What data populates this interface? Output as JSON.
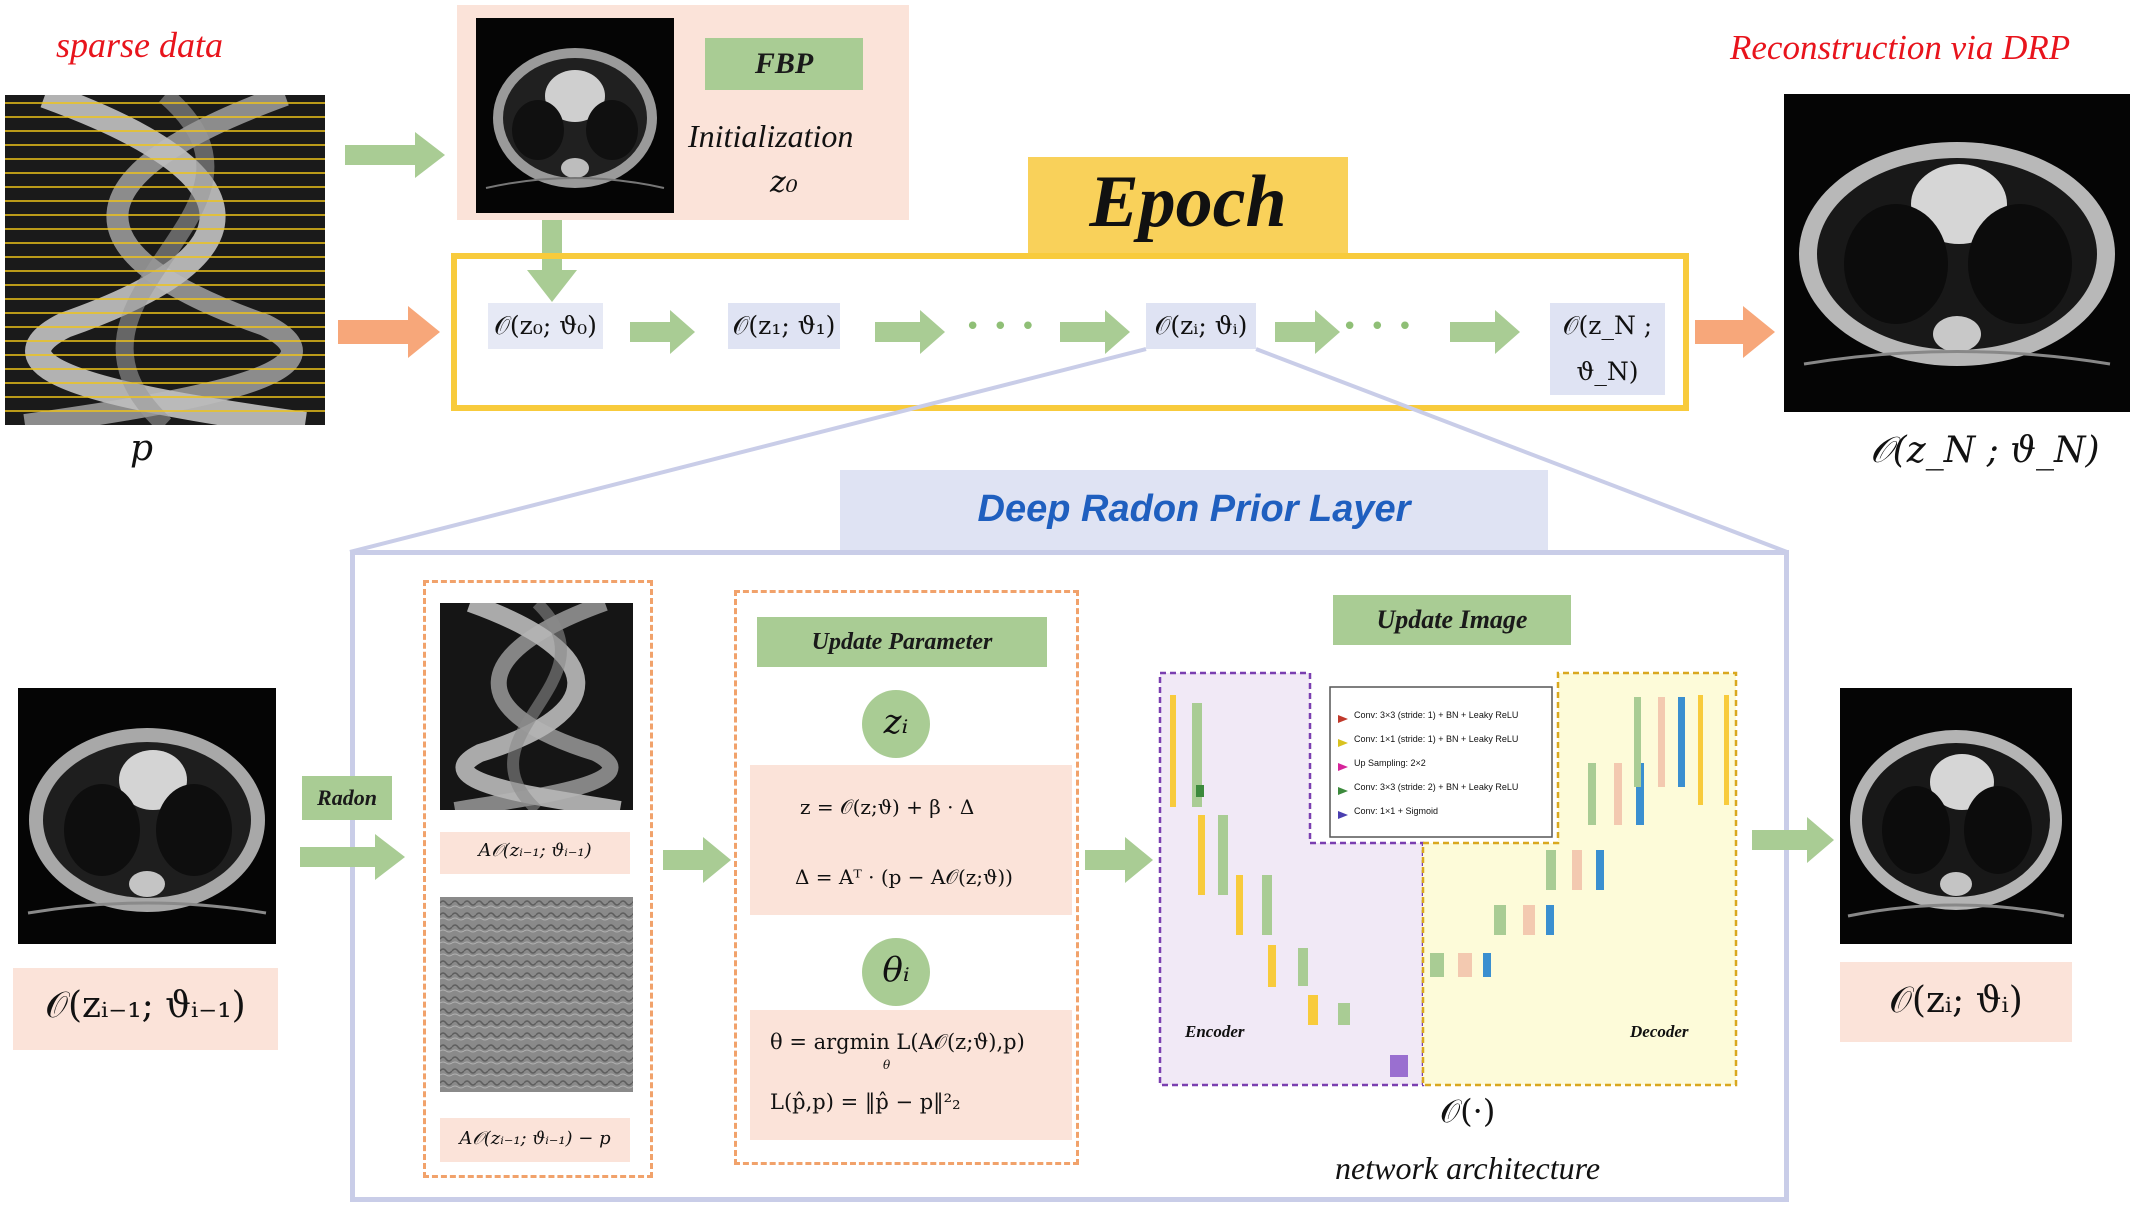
{
  "top": {
    "sparse_label": "sparse data",
    "p_label": "p",
    "fbp_label": "FBP",
    "init_label": "Initialization",
    "z0_label": "z₀",
    "recon_label": "Reconstruction via DRP",
    "recon_out": "𝒪(z_N ; ϑ_N)",
    "epoch_label": "Epoch"
  },
  "chain": {
    "n0": "𝒪(z₀; ϑ₀)",
    "n1": "𝒪(z₁; ϑ₁)",
    "ni": "𝒪(zᵢ; ϑᵢ)",
    "nN": "𝒪(z_N ; ϑ_N)",
    "dots": "• • •"
  },
  "layer": {
    "title": "Deep Radon Prior Layer",
    "input_label": "𝒪(zᵢ₋₁; ϑᵢ₋₁)",
    "radon_label": "Radon",
    "proj_label": "A𝒪(zᵢ₋₁; ϑᵢ₋₁)",
    "resid_label": "A𝒪(zᵢ₋₁; ϑᵢ₋₁) − p",
    "update_param": "Update Parameter",
    "zi": "zᵢ",
    "eq1": "z =  𝒪(z;ϑ) + β · Δ",
    "eq2": "Δ = Aᵀ · (p  −  A𝒪(z;ϑ))",
    "thetai": "θᵢ",
    "eq3": "θ  =  argmin  L(A𝒪(z;ϑ),p)",
    "eq3_sub": "θ",
    "eq4": "L(p̂,p) = ‖p̂  −  p‖²₂",
    "update_image": "Update Image",
    "net_op": "𝒪(·)",
    "net_caption": "network architecture",
    "output_label": "𝒪(zᵢ; ϑᵢ)",
    "encoder": "Encoder",
    "decoder": "Decoder"
  },
  "legend": [
    "Conv: 3×3 (stride: 1) + BN + Leaky ReLU",
    "Conv: 1×1 (stride: 1) + BN + Leaky ReLU",
    "Up Sampling: 2×2",
    "Conv: 3×3 (stride: 2) + BN + Leaky ReLU",
    "Conv: 1×1 + Sigmoid"
  ],
  "colors": {
    "green": "#a9cc94",
    "orange_arrow": "#f7a77a",
    "yellow": "#f8cb3c",
    "lavender": "#c9cde8",
    "pink": "#fbe3d9",
    "red": "#e8141c",
    "blue_title": "#1f5fbf"
  }
}
